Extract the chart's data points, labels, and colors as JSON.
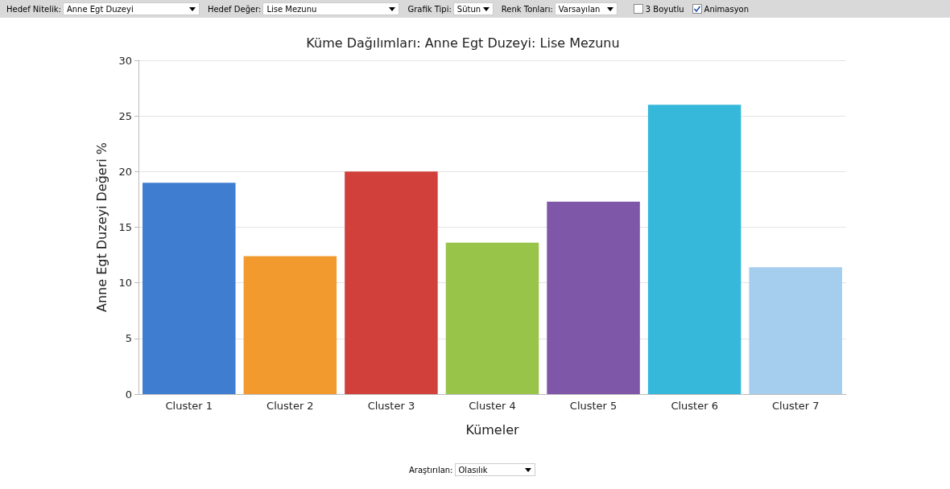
{
  "chart_data": {
    "type": "bar",
    "title": "Küme Dağılımları: Anne Egt Duzeyi: Lise Mezunu",
    "xlabel": "Kümeler",
    "ylabel": "Anne Egt Duzeyi Değeri %",
    "categories": [
      "Cluster 1",
      "Cluster 2",
      "Cluster 3",
      "Cluster 4",
      "Cluster 5",
      "Cluster 6",
      "Cluster 7"
    ],
    "values": [
      19,
      12.4,
      20,
      13.6,
      17.3,
      26,
      11.4
    ],
    "colors": [
      "#3f7dd0",
      "#f29a2e",
      "#d2403c",
      "#98c44a",
      "#7e57a8",
      "#35b8da",
      "#a5cdee"
    ],
    "ylim": [
      0,
      30
    ],
    "yticks": [
      0,
      5,
      10,
      15,
      20,
      25,
      30
    ],
    "grid": "y",
    "annotations": [
      "Hedef Nitelik:",
      "Anne Egt Duzeyi",
      "Hedef Değer:",
      "Lise Mezunu",
      "Grafik Tipi:",
      "Sütun",
      "Renk Tonları:",
      "Varsayılan",
      "3 Boyutlu",
      "Animasyon",
      "Araştırılan:",
      "Olasılık"
    ]
  }
}
